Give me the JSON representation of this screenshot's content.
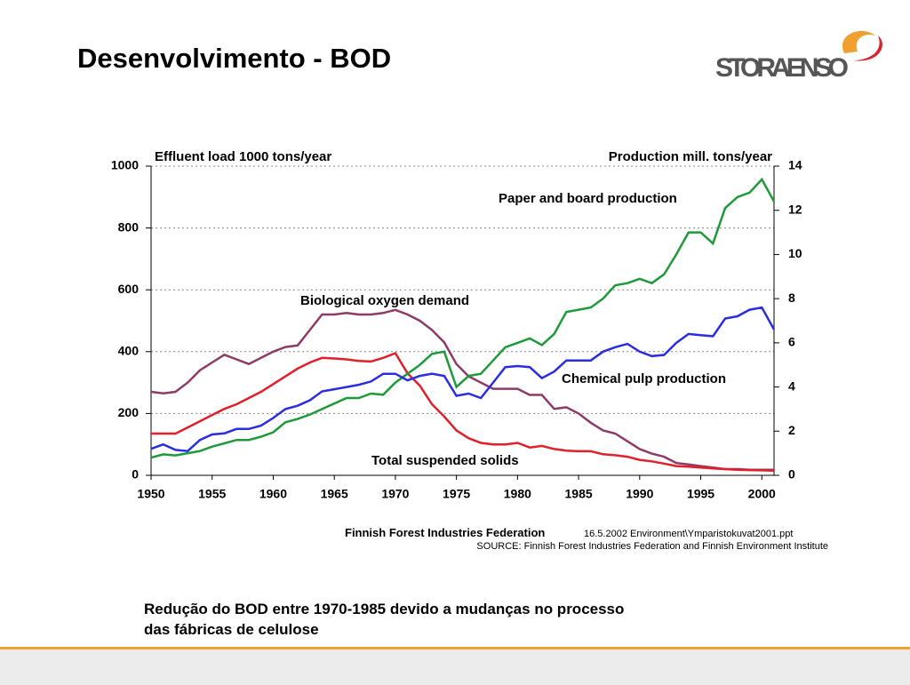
{
  "title": "Desenvolvimento - BOD",
  "logo": "STORAENSO",
  "caption": "Redução do BOD entre 1970-1985 devido a mudanças no processo das fábricas de celulose",
  "chart_data": {
    "type": "line",
    "ylabel": "Effluent load 1000 tons/year",
    "y2label": "Production mill. tons/year",
    "x": [
      1950,
      1951,
      1952,
      1953,
      1954,
      1955,
      1956,
      1957,
      1958,
      1959,
      1960,
      1961,
      1962,
      1963,
      1964,
      1965,
      1966,
      1967,
      1968,
      1969,
      1970,
      1971,
      1972,
      1973,
      1974,
      1975,
      1976,
      1977,
      1978,
      1979,
      1980,
      1981,
      1982,
      1983,
      1984,
      1985,
      1986,
      1987,
      1988,
      1989,
      1990,
      1991,
      1992,
      1993,
      1994,
      1995,
      1996,
      1997,
      1998,
      1999,
      2000,
      2001
    ],
    "xlim": [
      1950,
      2001
    ],
    "xticks": [
      1950,
      1955,
      1960,
      1965,
      1970,
      1975,
      1980,
      1985,
      1990,
      1995,
      2000
    ],
    "ylim": [
      0,
      1000
    ],
    "yticks": [
      0,
      200,
      400,
      600,
      800,
      1000
    ],
    "y2lim": [
      0,
      14
    ],
    "y2ticks": [
      0,
      2,
      4,
      6,
      8,
      10,
      12,
      14
    ],
    "grid": true,
    "series": [
      {
        "name": "Biological oxygen demand",
        "color": "#8e3b66",
        "axis": "y",
        "values": [
          270,
          265,
          270,
          300,
          340,
          365,
          390,
          375,
          360,
          380,
          400,
          415,
          420,
          470,
          520,
          520,
          525,
          520,
          520,
          525,
          535,
          520,
          500,
          470,
          430,
          360,
          320,
          300,
          280,
          280,
          280,
          260,
          260,
          215,
          220,
          200,
          170,
          145,
          135,
          110,
          85,
          70,
          60,
          40,
          35,
          30,
          25,
          20,
          20,
          18,
          18,
          18
        ]
      },
      {
        "name": "Total suspended solids",
        "color": "#e0202a",
        "axis": "y",
        "values": [
          135,
          135,
          135,
          155,
          175,
          195,
          215,
          230,
          250,
          270,
          295,
          320,
          345,
          365,
          380,
          378,
          375,
          370,
          368,
          380,
          395,
          330,
          290,
          230,
          190,
          145,
          120,
          105,
          100,
          100,
          105,
          90,
          95,
          85,
          80,
          78,
          78,
          68,
          65,
          60,
          50,
          45,
          38,
          30,
          28,
          25,
          22,
          20,
          18,
          17,
          16,
          15
        ]
      },
      {
        "name": "Paper and board production",
        "color": "#1f9a3a",
        "axis": "y2",
        "values": [
          0.8,
          0.95,
          0.9,
          1.0,
          1.1,
          1.3,
          1.45,
          1.6,
          1.6,
          1.75,
          1.95,
          2.4,
          2.55,
          2.75,
          3.0,
          3.25,
          3.5,
          3.5,
          3.7,
          3.65,
          4.2,
          4.6,
          5.0,
          5.5,
          5.6,
          4.0,
          4.5,
          4.6,
          5.2,
          5.8,
          6.0,
          6.2,
          5.9,
          6.4,
          7.4,
          7.5,
          7.6,
          8.0,
          8.6,
          8.7,
          8.9,
          8.7,
          9.1,
          10.0,
          11.0,
          11.0,
          10.5,
          12.1,
          12.6,
          12.8,
          13.4,
          12.4
        ]
      },
      {
        "name": "Chemical pulp production",
        "color": "#2a2ee0",
        "axis": "y2",
        "values": [
          1.2,
          1.4,
          1.15,
          1.1,
          1.6,
          1.85,
          1.9,
          2.1,
          2.1,
          2.25,
          2.6,
          3.0,
          3.15,
          3.4,
          3.8,
          3.9,
          4.0,
          4.1,
          4.25,
          4.6,
          4.6,
          4.3,
          4.5,
          4.6,
          4.5,
          3.6,
          3.7,
          3.5,
          4.2,
          4.9,
          4.95,
          4.9,
          4.4,
          4.7,
          5.2,
          5.2,
          5.2,
          5.6,
          5.8,
          5.95,
          5.6,
          5.4,
          5.45,
          6.0,
          6.4,
          6.35,
          6.3,
          7.1,
          7.2,
          7.5,
          7.6,
          6.6
        ]
      }
    ],
    "source": "Finnish Forest Industries Federation",
    "file_note": "16.5.2002 Environment\\Ymparistokuvat2001.ppt",
    "source_note": "SOURCE: Finnish Forest Industries Federation and Finnish Environment Institute"
  }
}
